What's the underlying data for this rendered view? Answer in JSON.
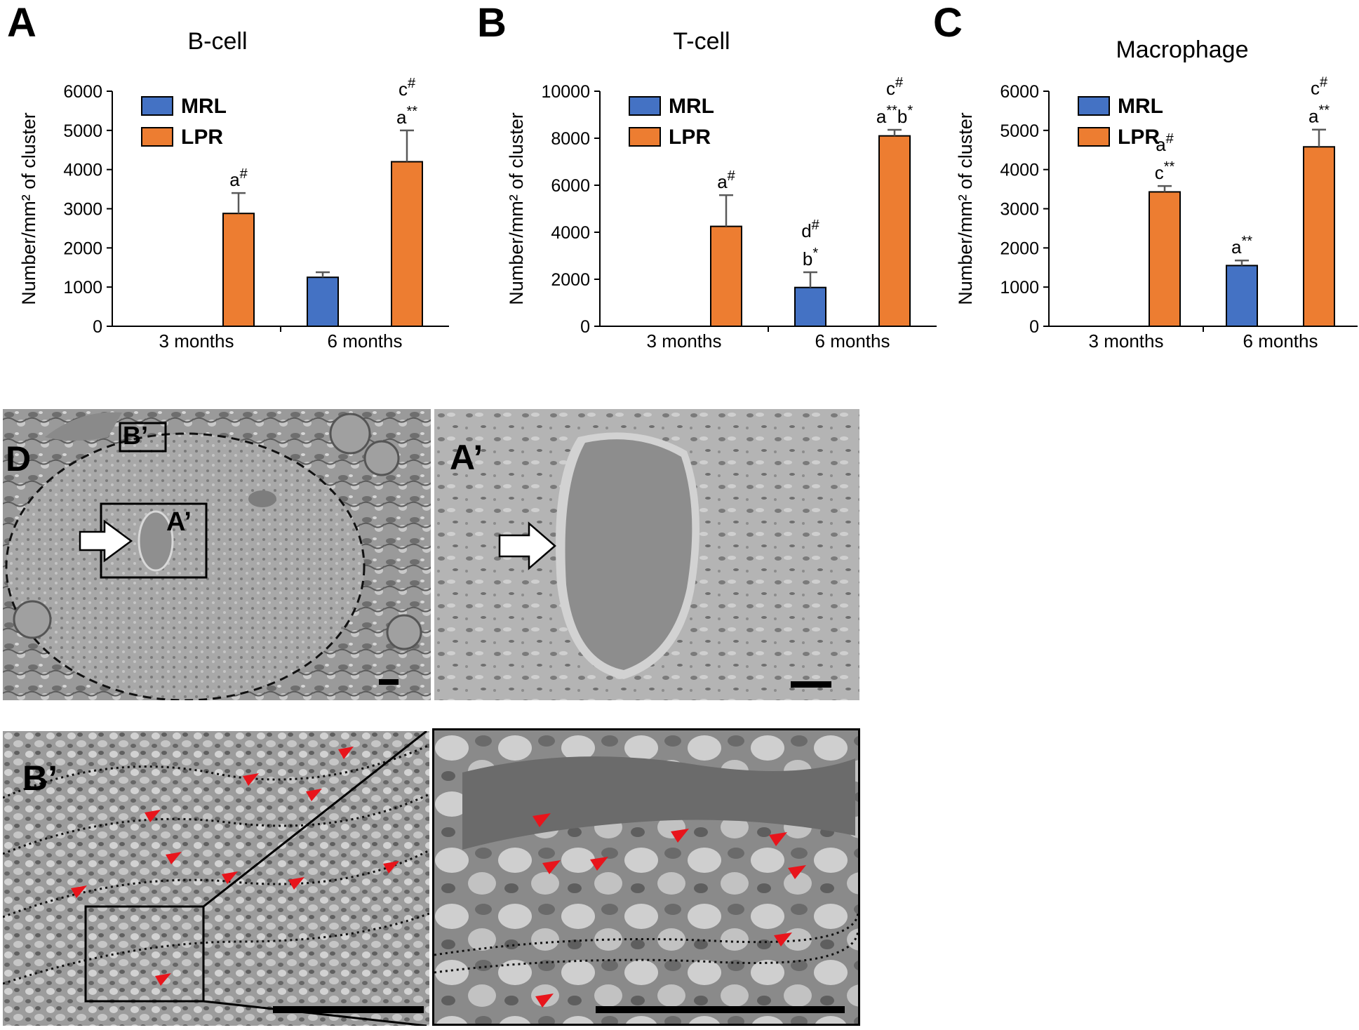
{
  "colors": {
    "mrl": "#4472C4",
    "lpr": "#ED7D31",
    "error_bar": "#595959",
    "arrowhead": "#e8141b"
  },
  "legend": {
    "series": [
      "MRL",
      "LPR"
    ]
  },
  "chart_data": [
    {
      "panel": "A",
      "type": "bar",
      "title": "B-cell",
      "ylabel": "Number/mm² of cluster",
      "xlabel": "",
      "categories": [
        "3 months",
        "6 months"
      ],
      "ylim": [
        0,
        6000
      ],
      "yticks": [
        0,
        1000,
        2000,
        3000,
        4000,
        5000,
        6000
      ],
      "series": [
        {
          "name": "MRL",
          "values": [
            0,
            1250
          ],
          "errors": [
            0,
            130
          ]
        },
        {
          "name": "LPR",
          "values": [
            2880,
            4200
          ],
          "errors": [
            520,
            800
          ]
        }
      ],
      "annotations": [
        {
          "series": "MRL",
          "category": "6 months",
          "lines": []
        },
        {
          "series": "LPR",
          "category": "3 months",
          "lines": [
            "a#"
          ]
        },
        {
          "series": "LPR",
          "category": "6 months",
          "lines": [
            "c#",
            "a**"
          ]
        }
      ]
    },
    {
      "panel": "B",
      "type": "bar",
      "title": "T-cell",
      "ylabel": "Number/mm² of cluster",
      "xlabel": "",
      "categories": [
        "3 months",
        "6 months"
      ],
      "ylim": [
        0,
        10000
      ],
      "yticks": [
        0,
        2000,
        4000,
        6000,
        8000,
        10000
      ],
      "series": [
        {
          "name": "MRL",
          "values": [
            0,
            1650
          ],
          "errors": [
            0,
            650
          ]
        },
        {
          "name": "LPR",
          "values": [
            4250,
            8100
          ],
          "errors": [
            1330,
            260
          ]
        }
      ],
      "annotations": [
        {
          "series": "MRL",
          "category": "6 months",
          "lines": [
            "d#",
            "b*"
          ]
        },
        {
          "series": "LPR",
          "category": "3 months",
          "lines": [
            "a#"
          ]
        },
        {
          "series": "LPR",
          "category": "6 months",
          "lines": [
            "c#",
            "a**b*"
          ]
        }
      ]
    },
    {
      "panel": "C",
      "type": "bar",
      "title": "Macrophage",
      "ylabel": "Number/mm² of cluster",
      "xlabel": "",
      "categories": [
        "3 months",
        "6 months"
      ],
      "ylim": [
        0,
        6000
      ],
      "yticks": [
        0,
        1000,
        2000,
        3000,
        4000,
        5000,
        6000
      ],
      "series": [
        {
          "name": "MRL",
          "values": [
            0,
            1550
          ],
          "errors": [
            0,
            130
          ]
        },
        {
          "name": "LPR",
          "values": [
            3430,
            4580
          ],
          "errors": [
            150,
            440
          ]
        }
      ],
      "annotations": [
        {
          "series": "MRL",
          "category": "6 months",
          "lines": [
            "a**"
          ]
        },
        {
          "series": "LPR",
          "category": "3 months",
          "lines": [
            "a#",
            "c**"
          ]
        },
        {
          "series": "LPR",
          "category": "6 months",
          "lines": [
            "c#",
            "a**"
          ]
        }
      ]
    }
  ],
  "micrographs": {
    "d": {
      "panel_label": "D",
      "box_a_label": "A’",
      "box_b_label": "B’"
    },
    "a_prime": {
      "panel_label": "A’"
    },
    "b_prime": {
      "panel_label": "B’"
    }
  }
}
